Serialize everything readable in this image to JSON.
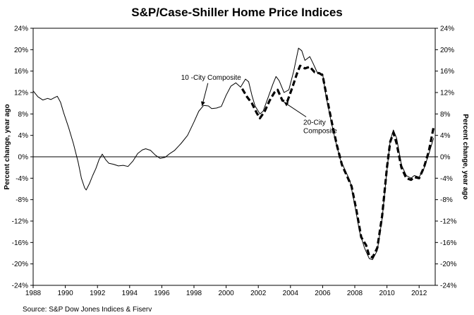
{
  "chart_data": {
    "type": "line",
    "title": "S&P/Case-Shiller Home Price Indices",
    "ylabel_left": "Percent change, year ago",
    "ylabel_right": "Percent change, year ago",
    "xlim": [
      1988,
      2013
    ],
    "ylim": [
      -24,
      24
    ],
    "x_ticks": [
      {
        "v": 1988,
        "label": "1988"
      },
      {
        "v": 1990,
        "label": "1990"
      },
      {
        "v": 1992,
        "label": "1992"
      },
      {
        "v": 1994,
        "label": "1994"
      },
      {
        "v": 1996,
        "label": "1996"
      },
      {
        "v": 1998,
        "label": "1998"
      },
      {
        "v": 2000,
        "label": "2000"
      },
      {
        "v": 2002,
        "label": "2002"
      },
      {
        "v": 2004,
        "label": "2004"
      },
      {
        "v": 2006,
        "label": "2006"
      },
      {
        "v": 2008,
        "label": "2008"
      },
      {
        "v": 2010,
        "label": "2010"
      },
      {
        "v": 2012,
        "label": "2012"
      }
    ],
    "y_ticks": [
      {
        "v": 24,
        "label": "24%"
      },
      {
        "v": 20,
        "label": "20%"
      },
      {
        "v": 16,
        "label": "16%"
      },
      {
        "v": 12,
        "label": "12%"
      },
      {
        "v": 8,
        "label": "8%"
      },
      {
        "v": 4,
        "label": "4%"
      },
      {
        "v": 0,
        "label": "0%"
      },
      {
        "v": -4,
        "label": "-4%"
      },
      {
        "v": -8,
        "label": "-8%"
      },
      {
        "v": -12,
        "label": "-12%"
      },
      {
        "v": -16,
        "label": "-16%"
      },
      {
        "v": -20,
        "label": "-20%"
      },
      {
        "v": -24,
        "label": "-24%"
      }
    ],
    "grid": false,
    "zero_line": true,
    "series": [
      {
        "name": "10 -City Composite",
        "style": "solid",
        "color": "#000000",
        "points": [
          [
            1988.0,
            12.3
          ],
          [
            1988.3,
            11.2
          ],
          [
            1988.6,
            10.6
          ],
          [
            1988.9,
            10.9
          ],
          [
            1989.1,
            10.7
          ],
          [
            1989.3,
            11.0
          ],
          [
            1989.5,
            11.3
          ],
          [
            1989.7,
            10.2
          ],
          [
            1989.9,
            8.2
          ],
          [
            1990.2,
            5.5
          ],
          [
            1990.5,
            2.5
          ],
          [
            1990.8,
            -1.0
          ],
          [
            1991.0,
            -4.0
          ],
          [
            1991.2,
            -5.8
          ],
          [
            1991.3,
            -6.2
          ],
          [
            1991.5,
            -5.0
          ],
          [
            1991.7,
            -3.5
          ],
          [
            1991.9,
            -2.2
          ],
          [
            1992.1,
            -0.5
          ],
          [
            1992.3,
            0.5
          ],
          [
            1992.5,
            -0.5
          ],
          [
            1992.7,
            -1.2
          ],
          [
            1993.0,
            -1.4
          ],
          [
            1993.3,
            -1.7
          ],
          [
            1993.6,
            -1.6
          ],
          [
            1993.9,
            -1.8
          ],
          [
            1994.2,
            -0.8
          ],
          [
            1994.5,
            0.6
          ],
          [
            1994.8,
            1.3
          ],
          [
            1995.0,
            1.5
          ],
          [
            1995.3,
            1.2
          ],
          [
            1995.6,
            0.3
          ],
          [
            1995.9,
            -0.3
          ],
          [
            1996.2,
            -0.1
          ],
          [
            1996.5,
            0.6
          ],
          [
            1996.8,
            1.2
          ],
          [
            1997.2,
            2.5
          ],
          [
            1997.6,
            4.0
          ],
          [
            1998.0,
            6.5
          ],
          [
            1998.3,
            8.5
          ],
          [
            1998.6,
            9.6
          ],
          [
            1998.9,
            9.5
          ],
          [
            1999.1,
            9.0
          ],
          [
            1999.4,
            9.1
          ],
          [
            1999.7,
            9.4
          ],
          [
            2000.0,
            11.5
          ],
          [
            2000.3,
            13.2
          ],
          [
            2000.6,
            13.8
          ],
          [
            2000.9,
            13.0
          ],
          [
            2001.2,
            14.5
          ],
          [
            2001.4,
            14.0
          ],
          [
            2001.6,
            11.5
          ],
          [
            2001.8,
            9.5
          ],
          [
            2002.1,
            8.0
          ],
          [
            2002.3,
            8.5
          ],
          [
            2002.6,
            11.0
          ],
          [
            2002.9,
            13.5
          ],
          [
            2003.1,
            15.0
          ],
          [
            2003.3,
            14.2
          ],
          [
            2003.6,
            12.0
          ],
          [
            2003.9,
            12.5
          ],
          [
            2004.2,
            16.0
          ],
          [
            2004.5,
            20.3
          ],
          [
            2004.7,
            19.8
          ],
          [
            2004.9,
            18.0
          ],
          [
            2005.2,
            18.7
          ],
          [
            2005.4,
            17.5
          ],
          [
            2005.7,
            15.5
          ],
          [
            2006.0,
            15.5
          ],
          [
            2006.2,
            11.5
          ],
          [
            2006.5,
            7.0
          ],
          [
            2006.8,
            3.0
          ],
          [
            2007.1,
            -0.5
          ],
          [
            2007.4,
            -2.5
          ],
          [
            2007.7,
            -4.5
          ],
          [
            2008.0,
            -9.0
          ],
          [
            2008.3,
            -14.0
          ],
          [
            2008.6,
            -17.0
          ],
          [
            2008.9,
            -19.0
          ],
          [
            2009.1,
            -19.2
          ],
          [
            2009.4,
            -17.5
          ],
          [
            2009.7,
            -11.5
          ],
          [
            2010.0,
            -2.5
          ],
          [
            2010.2,
            3.0
          ],
          [
            2010.4,
            5.0
          ],
          [
            2010.6,
            3.5
          ],
          [
            2010.9,
            -1.5
          ],
          [
            2011.2,
            -3.5
          ],
          [
            2011.5,
            -4.0
          ],
          [
            2011.7,
            -3.5
          ],
          [
            2012.0,
            -3.8
          ],
          [
            2012.3,
            -2.2
          ],
          [
            2012.6,
            0.5
          ],
          [
            2012.9,
            3.5
          ]
        ]
      },
      {
        "name": "20-City Composite",
        "style": "dashed",
        "color": "#000000",
        "points": [
          [
            2001.0,
            12.7
          ],
          [
            2001.3,
            11.2
          ],
          [
            2001.6,
            10.0
          ],
          [
            2001.9,
            8.2
          ],
          [
            2002.1,
            7.2
          ],
          [
            2002.4,
            8.5
          ],
          [
            2002.7,
            10.5
          ],
          [
            2003.0,
            12.0
          ],
          [
            2003.2,
            12.5
          ],
          [
            2003.5,
            10.5
          ],
          [
            2003.8,
            10.3
          ],
          [
            2004.1,
            12.8
          ],
          [
            2004.4,
            15.5
          ],
          [
            2004.6,
            17.0
          ],
          [
            2004.9,
            16.5
          ],
          [
            2005.2,
            16.8
          ],
          [
            2005.5,
            15.8
          ],
          [
            2005.8,
            15.6
          ],
          [
            2006.0,
            15.2
          ],
          [
            2006.3,
            10.5
          ],
          [
            2006.6,
            6.0
          ],
          [
            2006.9,
            2.0
          ],
          [
            2007.2,
            -1.5
          ],
          [
            2007.5,
            -3.5
          ],
          [
            2007.8,
            -5.5
          ],
          [
            2008.1,
            -10.0
          ],
          [
            2008.4,
            -15.0
          ],
          [
            2008.7,
            -16.5
          ],
          [
            2008.9,
            -18.5
          ],
          [
            2009.1,
            -18.8
          ],
          [
            2009.4,
            -17.0
          ],
          [
            2009.7,
            -11.0
          ],
          [
            2010.0,
            -2.0
          ],
          [
            2010.2,
            2.8
          ],
          [
            2010.4,
            4.5
          ],
          [
            2010.6,
            2.5
          ],
          [
            2010.9,
            -2.0
          ],
          [
            2011.2,
            -4.0
          ],
          [
            2011.5,
            -4.3
          ],
          [
            2011.7,
            -3.8
          ],
          [
            2012.0,
            -4.0
          ],
          [
            2012.3,
            -2.0
          ],
          [
            2012.6,
            1.0
          ],
          [
            2012.9,
            5.5
          ]
        ]
      }
    ],
    "annotations": [
      {
        "lines": [
          "10 -City Composite"
        ],
        "target_series": "10 -City Composite",
        "target_point": [
          1998.5,
          9.5
        ],
        "anchor_point": [
          1997.2,
          14.4
        ]
      },
      {
        "lines": [
          "20-City",
          "Composite"
        ],
        "target_series": "20-City Composite",
        "target_point": [
          2003.6,
          10.2
        ],
        "anchor_point": [
          2004.8,
          6.0
        ]
      }
    ],
    "source": "Source: S&P Dow Jones Indices & Fiserv"
  }
}
